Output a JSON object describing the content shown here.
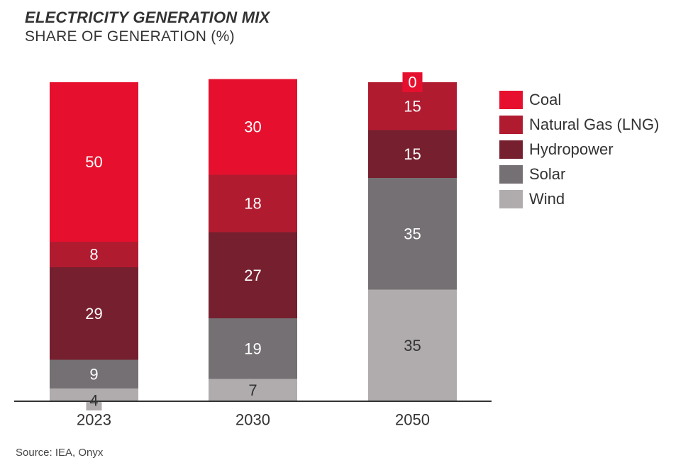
{
  "title": "ELECTRICITY GENERATION MIX",
  "subtitle": "SHARE OF GENERATION (%)",
  "source": "Source: IEA, Onyx",
  "chart_data": {
    "type": "bar",
    "stacked": true,
    "title": "ELECTRICITY GENERATION MIX",
    "subtitle": "SHARE OF GENERATION (%)",
    "categories": [
      "2023",
      "2030",
      "2050"
    ],
    "series": [
      {
        "name": "Wind",
        "values": [
          4,
          7,
          35
        ],
        "color": "#b0acae"
      },
      {
        "name": "Solar",
        "values": [
          9,
          19,
          35
        ],
        "color": "#747073"
      },
      {
        "name": "Hydropower",
        "values": [
          29,
          27,
          15
        ],
        "color": "#76202f"
      },
      {
        "name": "Natural Gas (LNG)",
        "values": [
          8,
          18,
          15
        ],
        "color": "#b11b30"
      },
      {
        "name": "Coal",
        "values": [
          50,
          30,
          0
        ],
        "color": "#e6102e"
      }
    ],
    "legend_order": [
      "Coal",
      "Natural Gas (LNG)",
      "Hydropower",
      "Solar",
      "Wind"
    ],
    "ylim": [
      0,
      100
    ],
    "grid": false,
    "legend_position": "right"
  }
}
